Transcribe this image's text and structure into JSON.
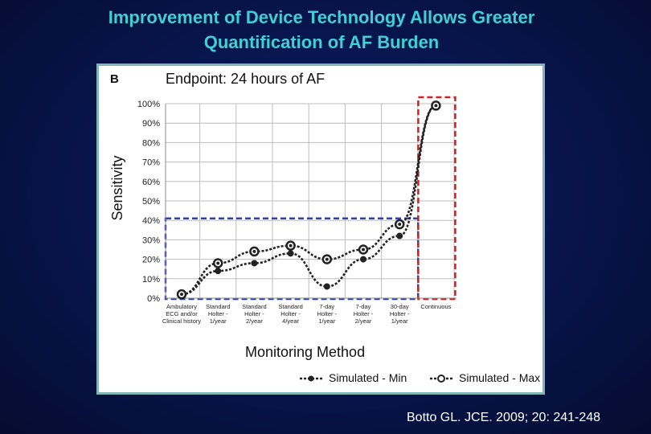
{
  "slide": {
    "title_line1": "Improvement of Device Technology Allows Greater",
    "title_line2": "Quantification of AF Burden",
    "citation": "Botto GL. JCE. 2009; 20: 241-248"
  },
  "colors": {
    "title": "#3fd0d6",
    "background": "#081650",
    "frame_border": "#7fb7b7",
    "series": "#222222",
    "box_blue": "#3040b0",
    "box_red": "#d02020",
    "grid": "#bdbdbd"
  },
  "chart_data": {
    "type": "line",
    "panel_label": "B",
    "title": "Endpoint: 24 hours of AF",
    "xlabel": "Monitoring Method",
    "ylabel": "Sensitivity",
    "ylim": [
      0,
      100
    ],
    "y_ticks": [
      "0%",
      "10%",
      "20%",
      "30%",
      "40%",
      "50%",
      "60%",
      "70%",
      "80%",
      "90%",
      "100%"
    ],
    "categories": [
      [
        "Ambulatory",
        "ECG and/or",
        "Clinical history"
      ],
      [
        "Standard",
        "Holter -",
        "1/year"
      ],
      [
        "Standard",
        "Holter -",
        "2/year"
      ],
      [
        "Standard",
        "Holter -",
        "4/year"
      ],
      [
        "7-day",
        "Holter -",
        "1/year"
      ],
      [
        "7-day",
        "Holter -",
        "2/year"
      ],
      [
        "30-day",
        "Holter -",
        "1/year"
      ],
      [
        "Continuous"
      ]
    ],
    "series": [
      {
        "name": "Simulated - Min",
        "marker": "filled-dot",
        "values": [
          2,
          14,
          18,
          23,
          6,
          20,
          32,
          99
        ]
      },
      {
        "name": "Simulated - Max",
        "marker": "open-circle",
        "values": [
          2,
          18,
          24,
          27,
          20,
          25,
          38,
          99
        ]
      }
    ],
    "grid": true,
    "legend_position": "bottom-right",
    "highlight_boxes": [
      {
        "color": "blue",
        "style": "dashed",
        "from_category": 0,
        "to_category": 6,
        "y_top": 41
      },
      {
        "color": "red",
        "style": "dashed",
        "from_category": 7,
        "to_category": 7,
        "y_top": 100
      }
    ]
  }
}
